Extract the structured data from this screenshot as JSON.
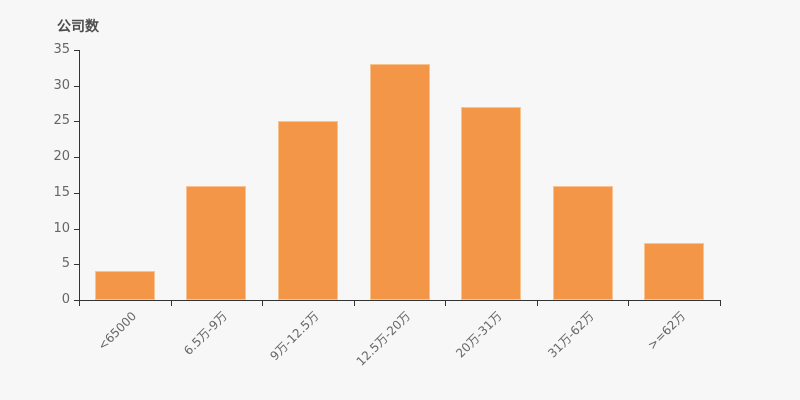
{
  "chart_data": {
    "type": "bar",
    "title": "公司数",
    "categories": [
      "<65000",
      "6.5万-9万",
      "9万-12.5万",
      "12.5万-20万",
      "20万-31万",
      "31万-62万",
      ">=62万"
    ],
    "values": [
      4,
      16,
      25,
      33,
      27,
      16,
      8
    ],
    "xlabel": "",
    "ylabel": "公司数",
    "ylim": [
      0,
      35
    ],
    "ytick_interval": 5,
    "ytick_labels": [
      "0",
      "5",
      "10",
      "15",
      "20",
      "25",
      "30",
      "35"
    ],
    "grid": "off",
    "legend": "none",
    "colors": {
      "background": "#f7f7f7",
      "bar": "#f49648",
      "bar_border": "#f7c490",
      "axis": "#333333",
      "tick_label": "#666666",
      "title": "#4d4d4d"
    }
  }
}
